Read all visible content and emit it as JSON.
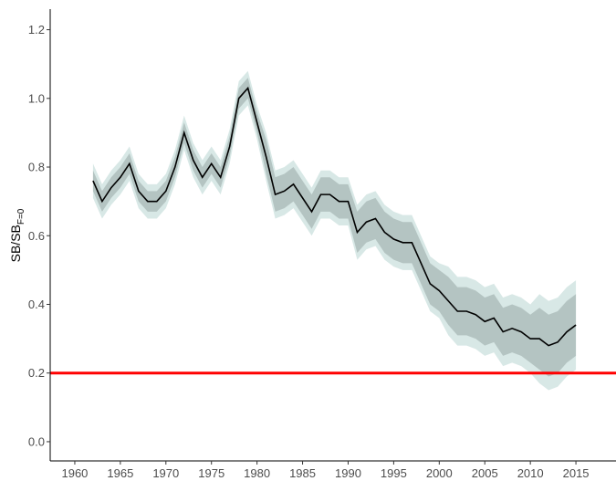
{
  "chart_data": {
    "type": "line",
    "y_label": "SB/SB",
    "y_label_subscript": "F=0",
    "x": [
      1962,
      1963,
      1964,
      1965,
      1966,
      1967,
      1968,
      1969,
      1970,
      1971,
      1972,
      1973,
      1974,
      1975,
      1976,
      1977,
      1978,
      1979,
      1980,
      1981,
      1982,
      1983,
      1984,
      1985,
      1986,
      1987,
      1988,
      1989,
      1990,
      1991,
      1992,
      1993,
      1994,
      1995,
      1996,
      1997,
      1998,
      1999,
      2000,
      2001,
      2002,
      2003,
      2004,
      2005,
      2006,
      2007,
      2008,
      2009,
      2010,
      2011,
      2012,
      2013,
      2014,
      2015
    ],
    "bands": [
      {
        "color": "#d8e8e6",
        "lower": [
          0.71,
          0.65,
          0.69,
          0.72,
          0.76,
          0.68,
          0.65,
          0.65,
          0.68,
          0.75,
          0.85,
          0.77,
          0.72,
          0.76,
          0.72,
          0.81,
          0.95,
          0.98,
          0.88,
          0.76,
          0.65,
          0.66,
          0.68,
          0.64,
          0.6,
          0.65,
          0.65,
          0.63,
          0.63,
          0.53,
          0.56,
          0.57,
          0.53,
          0.51,
          0.5,
          0.5,
          0.44,
          0.38,
          0.36,
          0.31,
          0.28,
          0.28,
          0.27,
          0.25,
          0.26,
          0.22,
          0.23,
          0.22,
          0.2,
          0.17,
          0.15,
          0.16,
          0.19,
          0.21
        ],
        "upper": [
          0.81,
          0.75,
          0.79,
          0.82,
          0.86,
          0.78,
          0.75,
          0.75,
          0.78,
          0.85,
          0.95,
          0.87,
          0.82,
          0.86,
          0.82,
          0.91,
          1.05,
          1.08,
          0.98,
          0.9,
          0.79,
          0.8,
          0.82,
          0.78,
          0.74,
          0.79,
          0.79,
          0.77,
          0.77,
          0.69,
          0.72,
          0.73,
          0.69,
          0.67,
          0.66,
          0.66,
          0.6,
          0.54,
          0.52,
          0.51,
          0.48,
          0.48,
          0.47,
          0.45,
          0.46,
          0.42,
          0.43,
          0.42,
          0.4,
          0.43,
          0.41,
          0.42,
          0.45,
          0.47
        ]
      },
      {
        "color": "#b4c4c2",
        "lower": [
          0.73,
          0.67,
          0.71,
          0.74,
          0.78,
          0.7,
          0.67,
          0.67,
          0.7,
          0.77,
          0.87,
          0.79,
          0.74,
          0.78,
          0.74,
          0.83,
          0.97,
          1.0,
          0.9,
          0.78,
          0.67,
          0.68,
          0.7,
          0.66,
          0.62,
          0.67,
          0.67,
          0.65,
          0.65,
          0.55,
          0.58,
          0.59,
          0.55,
          0.53,
          0.52,
          0.52,
          0.46,
          0.4,
          0.38,
          0.34,
          0.31,
          0.31,
          0.3,
          0.28,
          0.29,
          0.25,
          0.26,
          0.25,
          0.23,
          0.21,
          0.19,
          0.2,
          0.23,
          0.25
        ],
        "upper": [
          0.79,
          0.73,
          0.77,
          0.8,
          0.84,
          0.76,
          0.73,
          0.73,
          0.76,
          0.83,
          0.93,
          0.85,
          0.8,
          0.84,
          0.8,
          0.89,
          1.03,
          1.06,
          0.96,
          0.88,
          0.77,
          0.78,
          0.8,
          0.76,
          0.72,
          0.77,
          0.77,
          0.75,
          0.75,
          0.67,
          0.7,
          0.71,
          0.67,
          0.65,
          0.64,
          0.64,
          0.58,
          0.52,
          0.5,
          0.48,
          0.45,
          0.45,
          0.44,
          0.42,
          0.43,
          0.39,
          0.4,
          0.39,
          0.37,
          0.39,
          0.37,
          0.38,
          0.41,
          0.43
        ]
      }
    ],
    "series": [
      {
        "color": "#000000",
        "values": [
          0.76,
          0.7,
          0.74,
          0.77,
          0.81,
          0.73,
          0.7,
          0.7,
          0.73,
          0.8,
          0.9,
          0.82,
          0.77,
          0.81,
          0.77,
          0.86,
          1.0,
          1.03,
          0.93,
          0.83,
          0.72,
          0.73,
          0.75,
          0.71,
          0.67,
          0.72,
          0.72,
          0.7,
          0.7,
          0.61,
          0.64,
          0.65,
          0.61,
          0.59,
          0.58,
          0.58,
          0.52,
          0.46,
          0.44,
          0.41,
          0.38,
          0.38,
          0.37,
          0.35,
          0.36,
          0.32,
          0.33,
          0.32,
          0.3,
          0.3,
          0.28,
          0.29,
          0.32,
          0.34
        ]
      }
    ],
    "reference_line": {
      "y": 0.2,
      "color": "#ff0000"
    },
    "xlim": [
      1957.3,
      2019.4
    ],
    "xticks": [
      1960,
      1965,
      1970,
      1975,
      1980,
      1985,
      1990,
      1995,
      2000,
      2005,
      2010,
      2015
    ],
    "ylim": [
      -0.056,
      1.26
    ],
    "yticks": [
      {
        "value": 0,
        "label": "0.0"
      },
      0.2,
      0.4,
      0.6,
      0.8,
      {
        "value": 1,
        "label": "1.0"
      },
      1.2
    ],
    "grid": false
  }
}
